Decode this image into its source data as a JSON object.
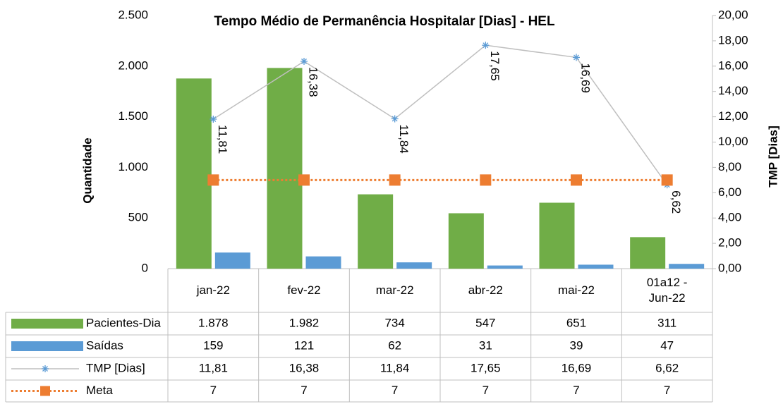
{
  "chart_data": {
    "type": "bar",
    "title": "Tempo Médio de Permanência Hospitalar [Dias] - HEL",
    "y_label": "Quantidade",
    "y2_label": "TMP [Dias]",
    "categories": [
      "jan-22",
      "fev-22",
      "mar-22",
      "abr-22",
      "mai-22",
      "01a12 - Jun-22"
    ],
    "series": [
      {
        "name": "Pacientes-Dia",
        "type": "bar",
        "color": "#70ad47",
        "axis": "y",
        "values": [
          1878,
          1982,
          734,
          547,
          651,
          311
        ],
        "value_labels": [
          "1.878",
          "1.982",
          "734",
          "547",
          "651",
          "311"
        ]
      },
      {
        "name": "Saídas",
        "type": "bar",
        "color": "#5b9bd5",
        "axis": "y",
        "values": [
          159,
          121,
          62,
          31,
          39,
          47
        ]
      },
      {
        "name": "TMP [Dias]",
        "type": "line",
        "color": "#bfbfbf",
        "marker_color": "#5b9bd5",
        "axis": "y2",
        "values": [
          11.81,
          16.38,
          11.84,
          17.65,
          16.69,
          6.62
        ],
        "value_labels": [
          "11,81",
          "16,38",
          "11,84",
          "17,65",
          "16,69",
          "6,62"
        ]
      },
      {
        "name": "Meta",
        "type": "line",
        "color": "#ed7d31",
        "dash": "dotted",
        "axis": "y2",
        "values": [
          7,
          7,
          7,
          7,
          7,
          7
        ]
      }
    ],
    "ylim": [
      0,
      2500
    ],
    "yticks": [
      0,
      500,
      {
        "value": 1000,
        "label": "1.000"
      },
      {
        "value": 1500,
        "label": "1.500"
      },
      {
        "value": 2000,
        "label": "2.000"
      },
      {
        "value": 2500,
        "label": "2.500"
      }
    ],
    "y2lim": [
      0,
      20
    ],
    "y2ticks": [
      {
        "value": 0,
        "label": "0,00"
      },
      {
        "value": 2,
        "label": "2,00"
      },
      {
        "value": 4,
        "label": "4,00"
      },
      {
        "value": 6,
        "label": "6,00"
      },
      {
        "value": 8,
        "label": "8,00"
      },
      {
        "value": 10,
        "label": "10,00"
      },
      {
        "value": 12,
        "label": "12,00"
      },
      {
        "value": 14,
        "label": "14,00"
      },
      {
        "value": 16,
        "label": "16,00"
      },
      {
        "value": 18,
        "label": "18,00"
      },
      {
        "value": 20,
        "label": "20,00"
      }
    ]
  }
}
